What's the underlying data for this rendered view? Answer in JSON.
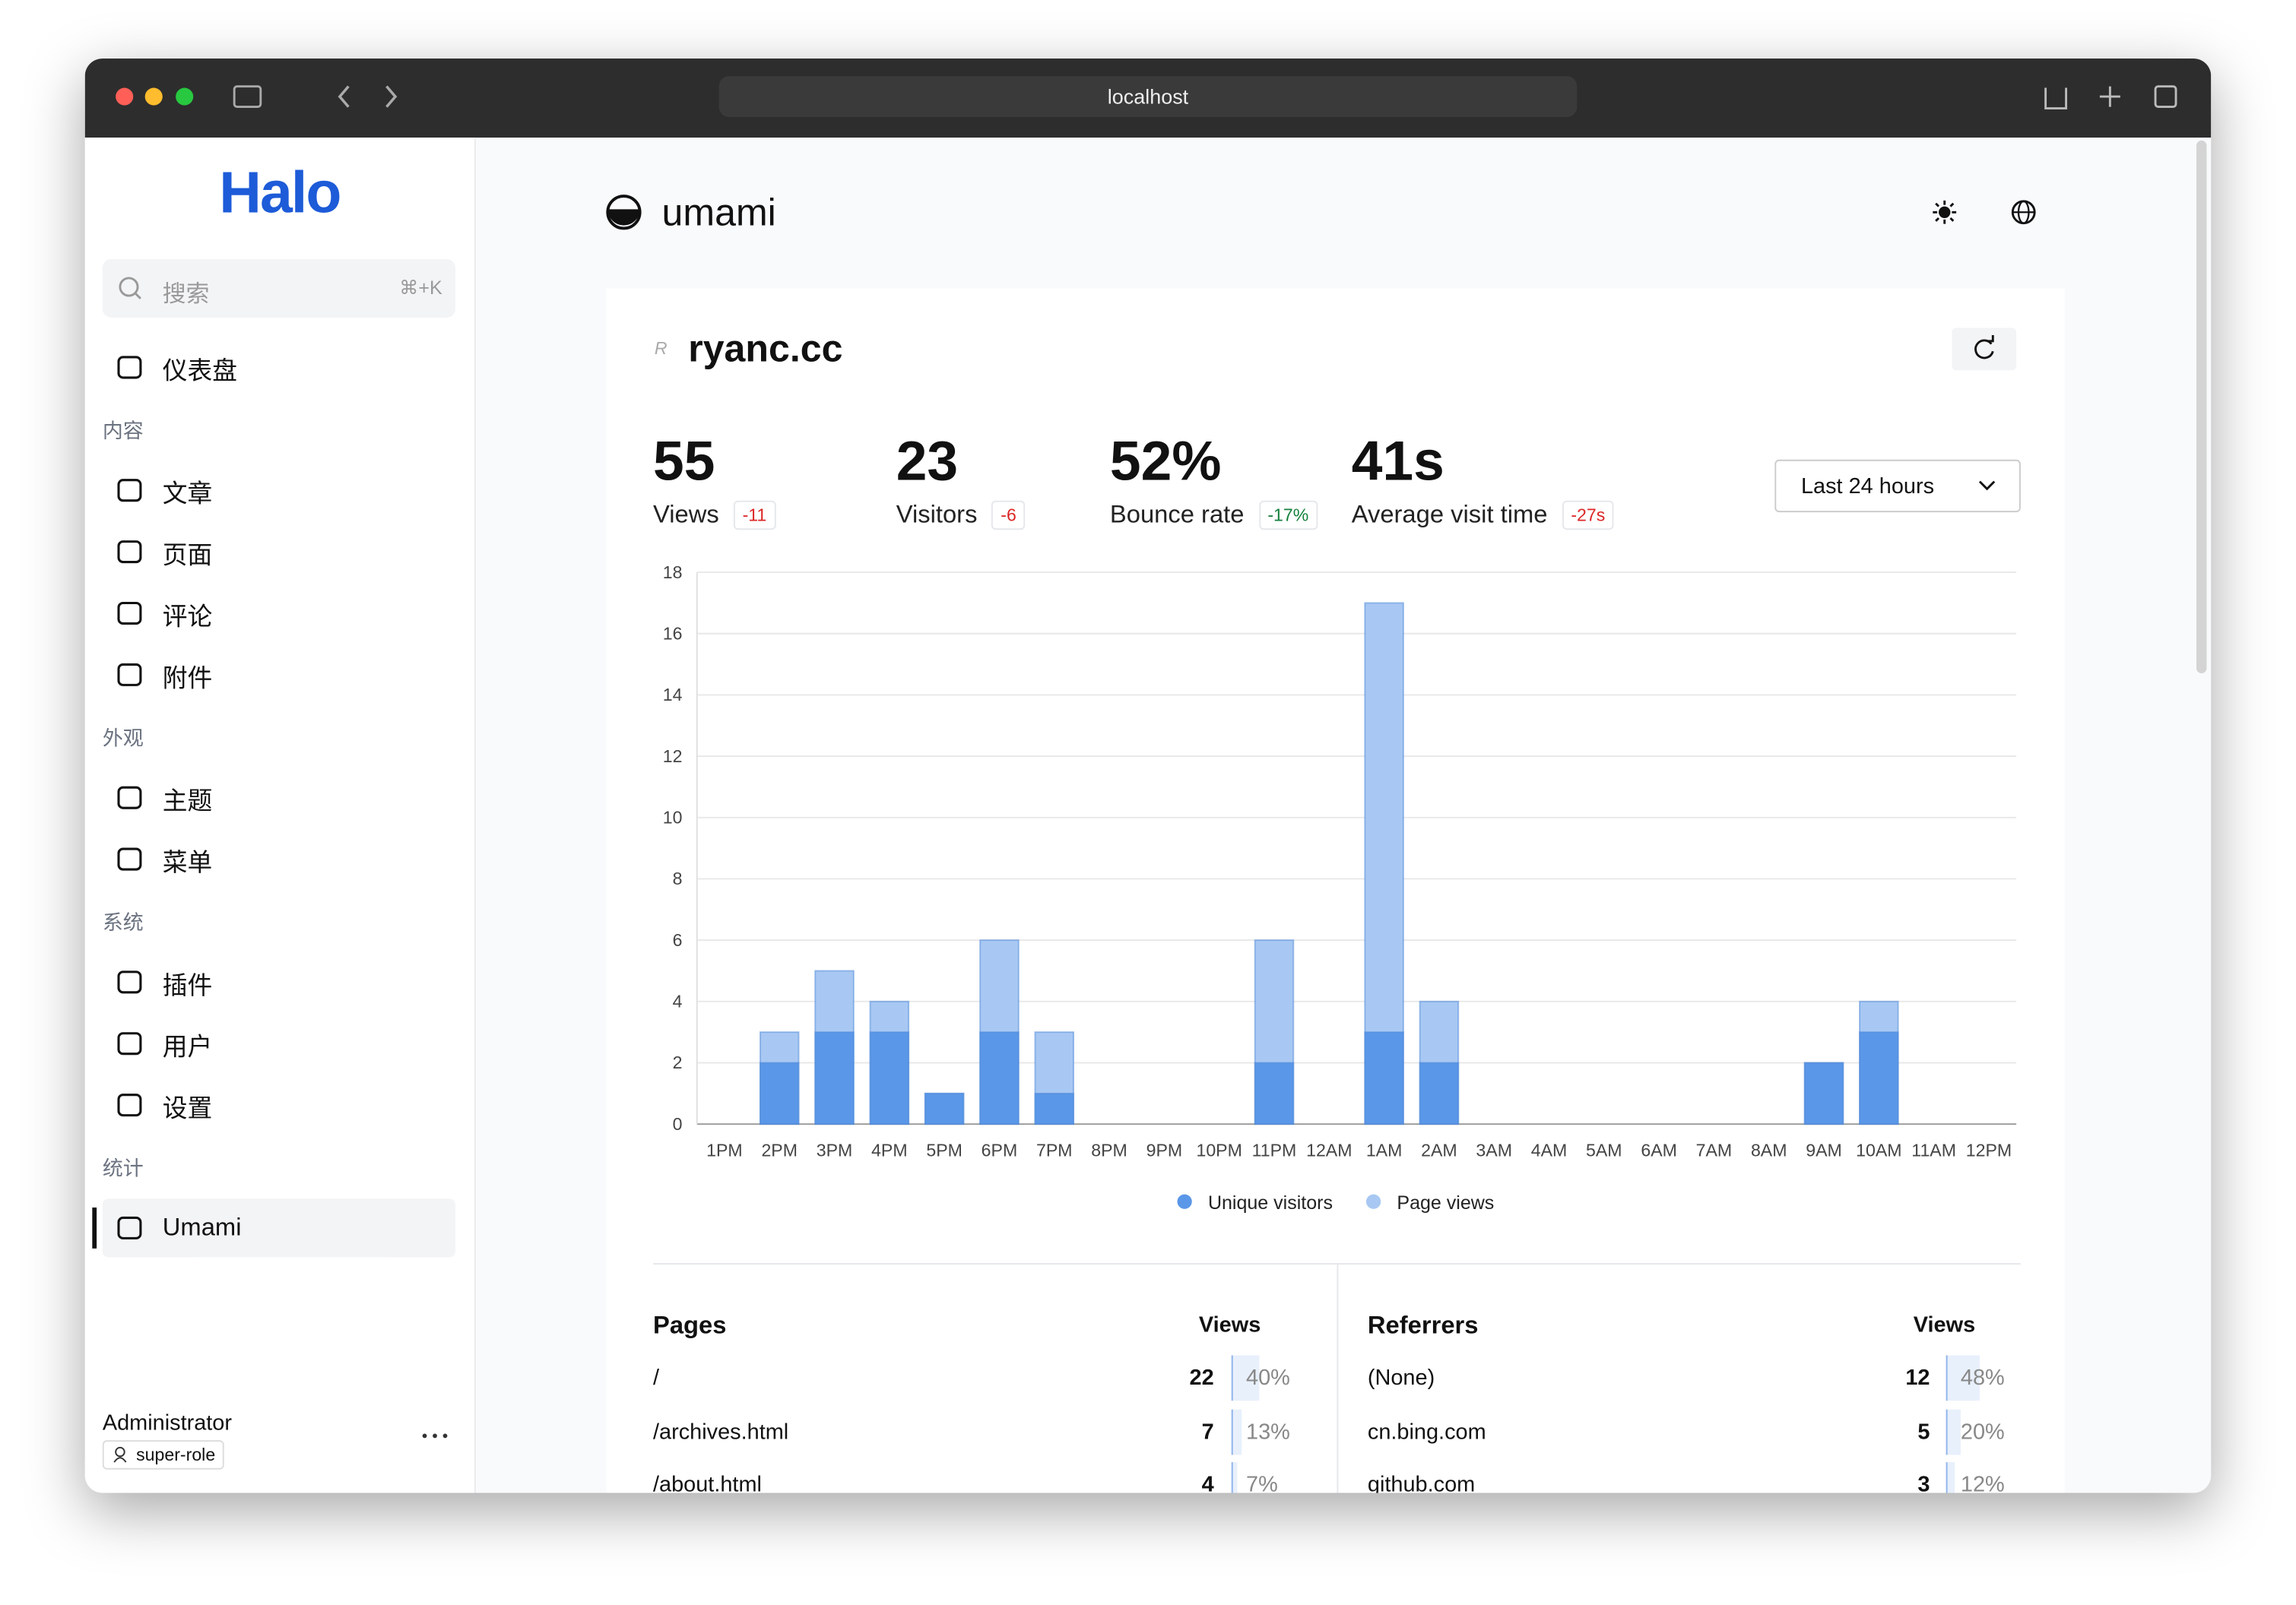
{
  "browser": {
    "url": "localhost"
  },
  "sidebar": {
    "logo": "Halo",
    "search": "搜索",
    "shortcut": "⌘+K",
    "groups": [
      {
        "items": [
          "仪表盘"
        ]
      },
      {
        "label": "内容",
        "items": [
          "文章",
          "页面",
          "评论",
          "附件"
        ]
      },
      {
        "label": "外观",
        "items": [
          "主题",
          "菜单"
        ]
      },
      {
        "label": "系统",
        "items": [
          "插件",
          "用户",
          "设置"
        ]
      },
      {
        "label": "统计",
        "items": [
          "Umami"
        ]
      }
    ],
    "user": {
      "name": "Administrator",
      "role": "super-role"
    }
  },
  "header": {
    "title": "umami"
  },
  "site": {
    "name": "ryanc.cc"
  },
  "metrics": [
    {
      "value": "55",
      "label": "Views",
      "change": "-11"
    },
    {
      "value": "23",
      "label": "Visitors",
      "change": "-6"
    },
    {
      "value": "52%",
      "label": "Bounce rate",
      "change": "-17%"
    },
    {
      "value": "41s",
      "label": "Average visit time",
      "change": "-27s"
    }
  ],
  "range": "Last 24 hours",
  "chart": {
    "type": "bar",
    "categories": [
      "1PM",
      "2PM",
      "3PM",
      "4PM",
      "5PM",
      "6PM",
      "7PM",
      "8PM",
      "9PM",
      "10PM",
      "11PM",
      "12AM",
      "1AM",
      "2AM",
      "3AM",
      "4AM",
      "5AM",
      "6AM",
      "7AM",
      "8AM",
      "9AM",
      "10AM",
      "11AM",
      "12PM"
    ],
    "series": [
      {
        "name": "Unique visitors",
        "color": "#5b97e8",
        "values": [
          0,
          2,
          3,
          3,
          1,
          3,
          1,
          0,
          0,
          0,
          2,
          0,
          3,
          2,
          0,
          0,
          0,
          0,
          0,
          0,
          2,
          3,
          0,
          0
        ]
      },
      {
        "name": "Page views",
        "color": "#a8c8f3",
        "values": [
          0,
          3,
          5,
          4,
          1,
          6,
          3,
          0,
          0,
          0,
          6,
          0,
          17,
          4,
          0,
          0,
          0,
          0,
          0,
          0,
          2,
          4,
          0,
          0
        ]
      }
    ],
    "ylim": [
      0,
      18
    ],
    "yticks": [
      0,
      2,
      4,
      6,
      8,
      10,
      12,
      14,
      16,
      18
    ],
    "grid": true
  },
  "pages": {
    "title": "Pages",
    "column": "Views",
    "rows": [
      {
        "label": "/",
        "value": "22",
        "share": "40%"
      },
      {
        "label": "/archives.html",
        "value": "7",
        "share": "13%"
      },
      {
        "label": "/about.html",
        "value": "4",
        "share": "7%"
      }
    ]
  },
  "referrers": {
    "title": "Referrers",
    "column": "Views",
    "rows": [
      {
        "label": "(None)",
        "value": "12",
        "share": "48%"
      },
      {
        "label": "cn.bing.com",
        "value": "5",
        "share": "20%"
      },
      {
        "label": "github.com",
        "value": "3",
        "share": "12%"
      }
    ]
  }
}
